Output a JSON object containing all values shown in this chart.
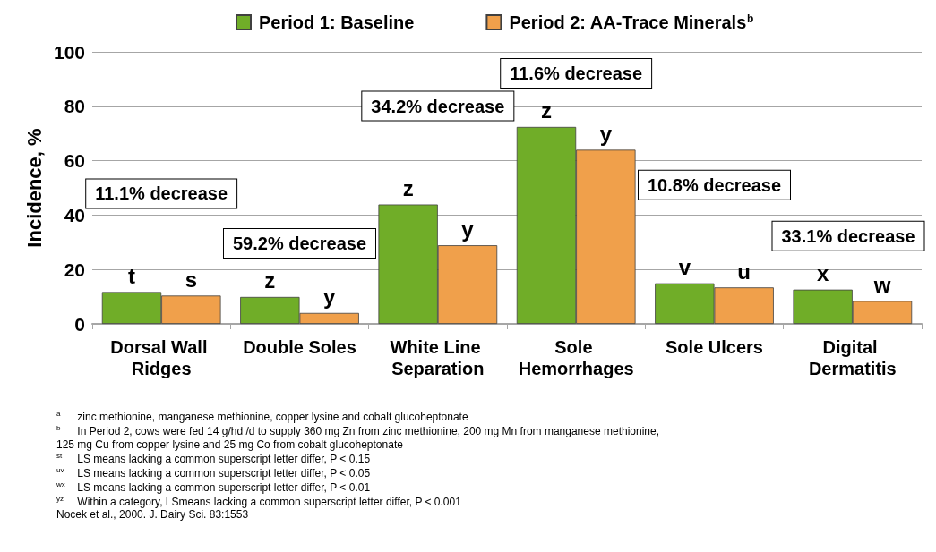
{
  "chart_data": {
    "type": "bar",
    "categories": [
      "Dorsal Wall Ridges",
      "Double Soles",
      "White Line Separation",
      "Sole Hemorrhages",
      "Sole Ulcers",
      "Digital Dermatitis"
    ],
    "series": [
      {
        "name": "Period 1: Baseline",
        "color": "#70ad28",
        "values": [
          11.7,
          9.9,
          43.9,
          72.4,
          14.9,
          12.6
        ],
        "value_labels": [
          "t",
          "z",
          "z",
          "z",
          "v",
          "x"
        ]
      },
      {
        "name": "Period 2: AA-Trace Minerals$^{b}$",
        "color": "#f0a04b",
        "values": [
          10.4,
          4.0,
          28.9,
          64.0,
          13.4,
          8.4
        ],
        "value_labels": [
          "s",
          "y",
          "y",
          "y",
          "u",
          "w"
        ]
      }
    ],
    "ylabel": "Incidence, %",
    "ylim": [
      0,
      100
    ],
    "yticks": [
      0,
      20,
      40,
      60,
      80,
      100
    ],
    "grid": "y",
    "legend": "top",
    "annotations": [
      "11.1% decrease",
      "59.2% decrease",
      "34.2% decrease",
      "11.6% decrease",
      "10.8% decrease",
      "33.1% decrease",
      "$^{a}$ zinc methionine, manganese methionine, copper lysine and cobalt glucoheptonate",
      "$^{b}$ In Period 2, cows were fed 14 g/hd /d to supply 360 mg Zn from zinc methionine, 200 mg Mn from manganese methionine,\n125 mg Cu from copper lysine and 25 mg Co from cobalt glucoheptonate",
      "$^{st}$ LS means lacking a common superscript letter differ, P < 0.15",
      "$^{uv}$ LS means lacking a common superscript letter differ, P < 0.05",
      "$^{wx}$ LS means lacking a common superscript letter differ, P < 0.01",
      "$^{yz}$ Within a category, LSmeans lacking a common superscript letter differ, P < 0.001",
      "Nocek et al., 2000. J. Dairy Sci. 83:1553"
    ]
  }
}
